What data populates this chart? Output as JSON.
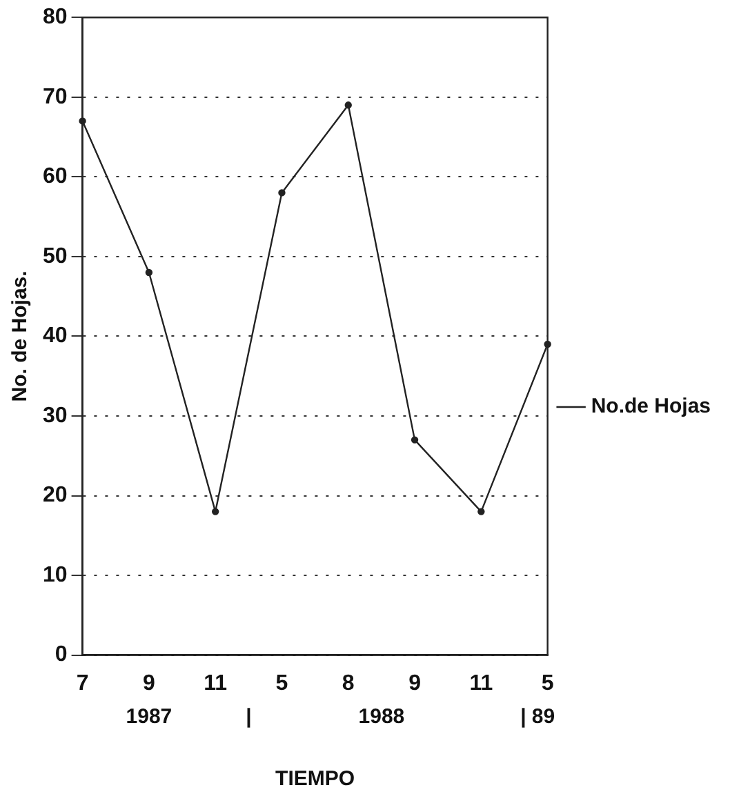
{
  "chart_data": {
    "type": "line",
    "xlabel": "TIEMPO",
    "ylabel": "No. de Hojas.",
    "categories": [
      "7",
      "9",
      "11",
      "5",
      "8",
      "9",
      "11",
      "5"
    ],
    "series": [
      {
        "name": "No.de Hojas",
        "color": "#222222",
        "values": [
          67,
          48,
          18,
          58,
          69,
          27,
          18,
          39
        ]
      }
    ],
    "ylim": [
      0,
      80
    ],
    "yticks": [
      0,
      10,
      20,
      30,
      40,
      50,
      60,
      70,
      80
    ],
    "annotations": [
      "1987",
      "|",
      "1988",
      "| 89"
    ],
    "grid": "y",
    "legend": "right",
    "marker": "circle",
    "line_style": "solid"
  }
}
